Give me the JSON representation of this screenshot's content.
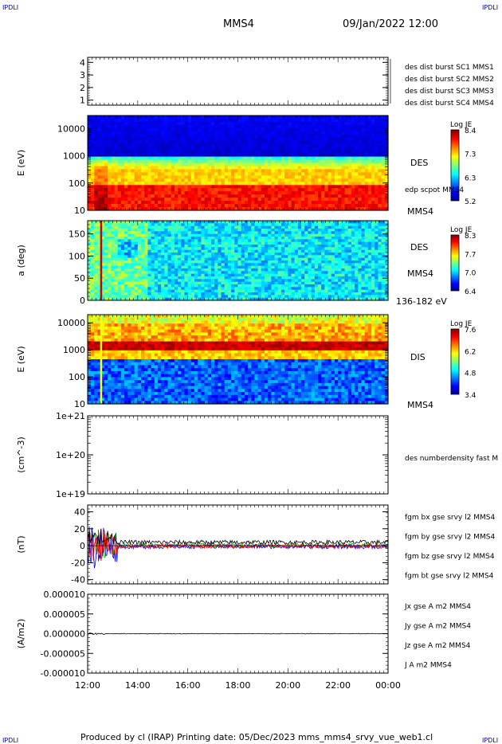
{
  "header": {
    "spacecraft": "MMS4",
    "datetime": "09/Jan/2022 12:00",
    "corner_left": "IPDLI",
    "corner_right": "IPDLI",
    "corner_bottom_left": "IPDLI",
    "corner_bottom_right": "IPDLI"
  },
  "footer": {
    "text": "Produced by cl (IRAP)   Printing date: 05/Dec/2023   mms_mms4_srvy_vue_web1.cl"
  },
  "chart_data": [
    {
      "type": "line",
      "panel": "spacecraft-flags",
      "ylabel": "",
      "yticks": [
        "1",
        "2",
        "3",
        "4"
      ],
      "ylim": [
        0.6,
        4.4
      ],
      "legend": [
        {
          "label": "des dist burst SC1 MMS1",
          "color": "#0000ff"
        },
        {
          "label": "des dist burst SC2 MMS2",
          "color": "#cc00cc"
        },
        {
          "label": "des dist burst SC3 MMS3",
          "color": "#dd0000"
        },
        {
          "label": "des dist burst SC4 MMS4",
          "color": "#00cc00"
        }
      ]
    },
    {
      "type": "heatmap",
      "panel": "des-energy",
      "ylabel": "E (eV)",
      "yscale": "log",
      "ylim": [
        10,
        30000
      ],
      "yticks": [
        "10",
        "100",
        "1000",
        "10000"
      ],
      "label": "DES",
      "label2": "MMS4",
      "overlay_label": "edp scpot MMS4",
      "colorbar": {
        "title": "Log JE",
        "min": 5.2,
        "max": 8.4,
        "ticks": [
          "8.4",
          "7.3",
          "6.3",
          "5.2"
        ]
      }
    },
    {
      "type": "heatmap",
      "panel": "des-pitch-angle",
      "ylabel": "a (deg)",
      "ylim": [
        0,
        180
      ],
      "yticks": [
        "0",
        "50",
        "100",
        "150"
      ],
      "label": "DES",
      "label2": "MMS4",
      "energy_range": "136-182 eV",
      "colorbar": {
        "title": "Log JE",
        "min": 6.4,
        "max": 8.3,
        "ticks": [
          "8.3",
          "7.7",
          "7.0",
          "6.4"
        ]
      }
    },
    {
      "type": "heatmap",
      "panel": "dis-energy",
      "ylabel": "E (eV)",
      "yscale": "log",
      "ylim": [
        10,
        20000
      ],
      "yticks": [
        "10",
        "100",
        "1000",
        "10000"
      ],
      "label": "DIS",
      "label2": "MMS4",
      "colorbar": {
        "title": "Log JE",
        "min": 3.4,
        "max": 7.6,
        "ticks": [
          "7.6",
          "6.2",
          "4.8",
          "3.4"
        ]
      }
    },
    {
      "type": "line",
      "panel": "density",
      "ylabel": "(cm^-3)",
      "yscale": "log",
      "ylim": [
        1e+19,
        1e+21
      ],
      "yticks": [
        "1e+19",
        "1e+20",
        "1e+21"
      ],
      "legend": [
        {
          "label": "des numberdensity fast M",
          "color": "#000000"
        }
      ]
    },
    {
      "type": "line",
      "panel": "magnetic-field",
      "ylabel": "(nT)",
      "ylim": [
        -45,
        48
      ],
      "yticks": [
        "-40",
        "-20",
        "0",
        "20",
        "40"
      ],
      "legend": [
        {
          "label": "fgm bx gse srvy l2 MMS4",
          "color": "#ff0000"
        },
        {
          "label": "fgm by gse srvy l2 MMS4",
          "color": "#00bb00"
        },
        {
          "label": "fgm bz gse srvy l2 MMS4",
          "color": "#0000ff"
        },
        {
          "label": "fgm bt gse srvy l2 MMS4",
          "color": "#000000"
        }
      ]
    },
    {
      "type": "line",
      "panel": "current-density",
      "ylabel": "(A/m2)",
      "ylim": [
        -1e-05,
        1e-05
      ],
      "yticks": [
        "-0.000010",
        "-0.000005",
        "0.000000",
        "0.000005",
        "0.000010"
      ],
      "legend": [
        {
          "label": "Jx gse A m2 MMS4",
          "color": "#ff0000"
        },
        {
          "label": "Jy gse A m2 MMS4",
          "color": "#00bb00"
        },
        {
          "label": "Jz gse A m2 MMS4",
          "color": "#0000ff"
        },
        {
          "label": "J A m2 MMS4",
          "color": "#000000"
        }
      ]
    }
  ],
  "time_axis": {
    "start_hour": 12,
    "end_hour": 24,
    "ticks": [
      "12:00",
      "14:00",
      "16:00",
      "18:00",
      "20:00",
      "22:00",
      "00:00"
    ]
  }
}
